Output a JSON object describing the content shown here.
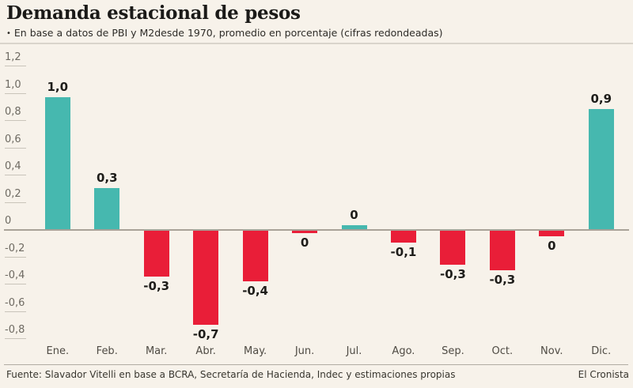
{
  "header": {
    "title": "Demanda estacional de pesos",
    "bullet": "•",
    "subtitle": "En base a datos de PBI y M2desde 1970, promedio en porcentaje (cifras redondeadas)"
  },
  "footer": {
    "source": "Fuente: Slavador Vitelli en base a BCRA, Secretaría de Hacienda, Indec y estimaciones propias",
    "brand": "El Cronista"
  },
  "colors": {
    "background": "#f7f2ea",
    "positive_bar": "#46b8af",
    "negative_bar": "#e91e38",
    "zero_axis_line": "#a8a298",
    "tick_line": "#c9c4ba",
    "axis_label_text": "#6e6a62",
    "month_label_text": "#4f4b44",
    "value_label_text": "#1e1d1a"
  },
  "chart_data": {
    "type": "bar",
    "title": "Demanda estacional de pesos",
    "subtitle": "En base a datos de PBI y M2desde 1970, promedio en porcentaje (cifras redondeadas)",
    "categories": [
      "Ene.",
      "Feb.",
      "Mar.",
      "Abr.",
      "May.",
      "Jun.",
      "Jul.",
      "Ago.",
      "Sep.",
      "Oct.",
      "Nov.",
      "Dic."
    ],
    "values": [
      1.0,
      0.3,
      -0.3,
      -0.7,
      -0.4,
      0,
      0,
      -0.1,
      -0.3,
      -0.3,
      0,
      0.9
    ],
    "data_labels": [
      "1,0",
      "0,3",
      "-0,3",
      "-0,7",
      "-0,4",
      "0",
      "0",
      "-0,1",
      "-0,3",
      "-0,3",
      "0",
      "0,9"
    ],
    "bar_values_visual": [
      0.97,
      0.3,
      -0.35,
      -0.7,
      -0.38,
      -0.03,
      0.03,
      -0.1,
      -0.26,
      -0.3,
      -0.05,
      0.88
    ],
    "y_ticks": [
      {
        "label": "1,2",
        "value": 1.2
      },
      {
        "label": "1,0",
        "value": 1.0
      },
      {
        "label": "0,8",
        "value": 0.8
      },
      {
        "label": "0,6",
        "value": 0.6
      },
      {
        "label": "0,4",
        "value": 0.4
      },
      {
        "label": "0,2",
        "value": 0.2
      },
      {
        "label": "0",
        "value": 0
      },
      {
        "label": "-0,2",
        "value": -0.2
      },
      {
        "label": "-0,4",
        "value": -0.4
      },
      {
        "label": "-0,6",
        "value": -0.6
      },
      {
        "label": "-0,8",
        "value": -0.8
      }
    ],
    "ylim": [
      -0.9,
      1.3
    ],
    "xlabel": "",
    "ylabel": "",
    "unit": "porcentaje",
    "grid": "short tick dashes at left axis only",
    "legend_position": "none"
  }
}
